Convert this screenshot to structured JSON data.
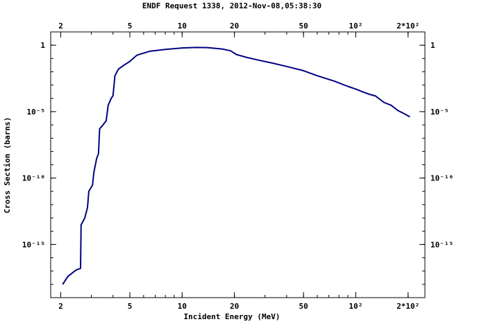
{
  "chart_data": {
    "type": "line",
    "title": "ENDF Request 1338, 2012-Nov-08,05:38:30",
    "xlabel": "Incident Energy (MeV)",
    "ylabel": "Cross Section (barns)",
    "x_scale": "log",
    "y_scale": "log",
    "xlim": [
      1.75,
      250
    ],
    "ylim": [
      1e-19,
      10
    ],
    "grid": false,
    "x_ticks": [
      {
        "value": 2,
        "label": "2"
      },
      {
        "value": 5,
        "label": "5"
      },
      {
        "value": 10,
        "label": "10"
      },
      {
        "value": 20,
        "label": "20"
      },
      {
        "value": 50,
        "label": "50"
      },
      {
        "value": 100,
        "label": "10²"
      },
      {
        "value": 200,
        "label": "2*10²"
      }
    ],
    "y_ticks": [
      {
        "value": 1,
        "label": "1"
      },
      {
        "value": 1e-05,
        "label": "10⁻⁵"
      },
      {
        "value": 1e-10,
        "label": "10⁻¹⁰"
      },
      {
        "value": 1e-15,
        "label": "10⁻¹⁵"
      }
    ],
    "series": [
      {
        "color": "#000080",
        "points": [
          [
            2.05,
            1e-18
          ],
          [
            2.2,
            4e-18
          ],
          [
            2.45,
            1.2e-17
          ],
          [
            2.6,
            1.6e-17
          ],
          [
            2.62,
            3e-14
          ],
          [
            2.75,
            1e-13
          ],
          [
            2.85,
            6e-13
          ],
          [
            2.9,
            1e-11
          ],
          [
            3.05,
            3e-11
          ],
          [
            3.1,
            2.5e-10
          ],
          [
            3.22,
            3e-09
          ],
          [
            3.3,
            7e-09
          ],
          [
            3.35,
            5e-07
          ],
          [
            3.5,
            1e-06
          ],
          [
            3.65,
            2e-06
          ],
          [
            3.75,
            3e-05
          ],
          [
            3.9,
            0.0001
          ],
          [
            4.0,
            0.00016
          ],
          [
            4.1,
            0.005
          ],
          [
            4.3,
            0.016
          ],
          [
            4.6,
            0.03
          ],
          [
            5.0,
            0.06
          ],
          [
            5.5,
            0.18
          ],
          [
            6.5,
            0.35
          ],
          [
            8,
            0.48
          ],
          [
            10,
            0.62
          ],
          [
            12,
            0.68
          ],
          [
            14,
            0.66
          ],
          [
            17,
            0.52
          ],
          [
            19,
            0.38
          ],
          [
            20.5,
            0.2
          ],
          [
            23,
            0.13
          ],
          [
            27,
            0.08
          ],
          [
            33,
            0.045
          ],
          [
            40,
            0.025
          ],
          [
            50,
            0.012
          ],
          [
            60,
            0.005
          ],
          [
            75,
            0.002
          ],
          [
            90,
            0.0008
          ],
          [
            100,
            0.0005
          ],
          [
            110,
            0.0003
          ],
          [
            120,
            0.0002
          ],
          [
            130,
            0.00015
          ],
          [
            145,
            5e-05
          ],
          [
            160,
            3e-05
          ],
          [
            175,
            1.2e-05
          ],
          [
            190,
            7e-06
          ],
          [
            205,
            4e-06
          ]
        ]
      }
    ]
  }
}
